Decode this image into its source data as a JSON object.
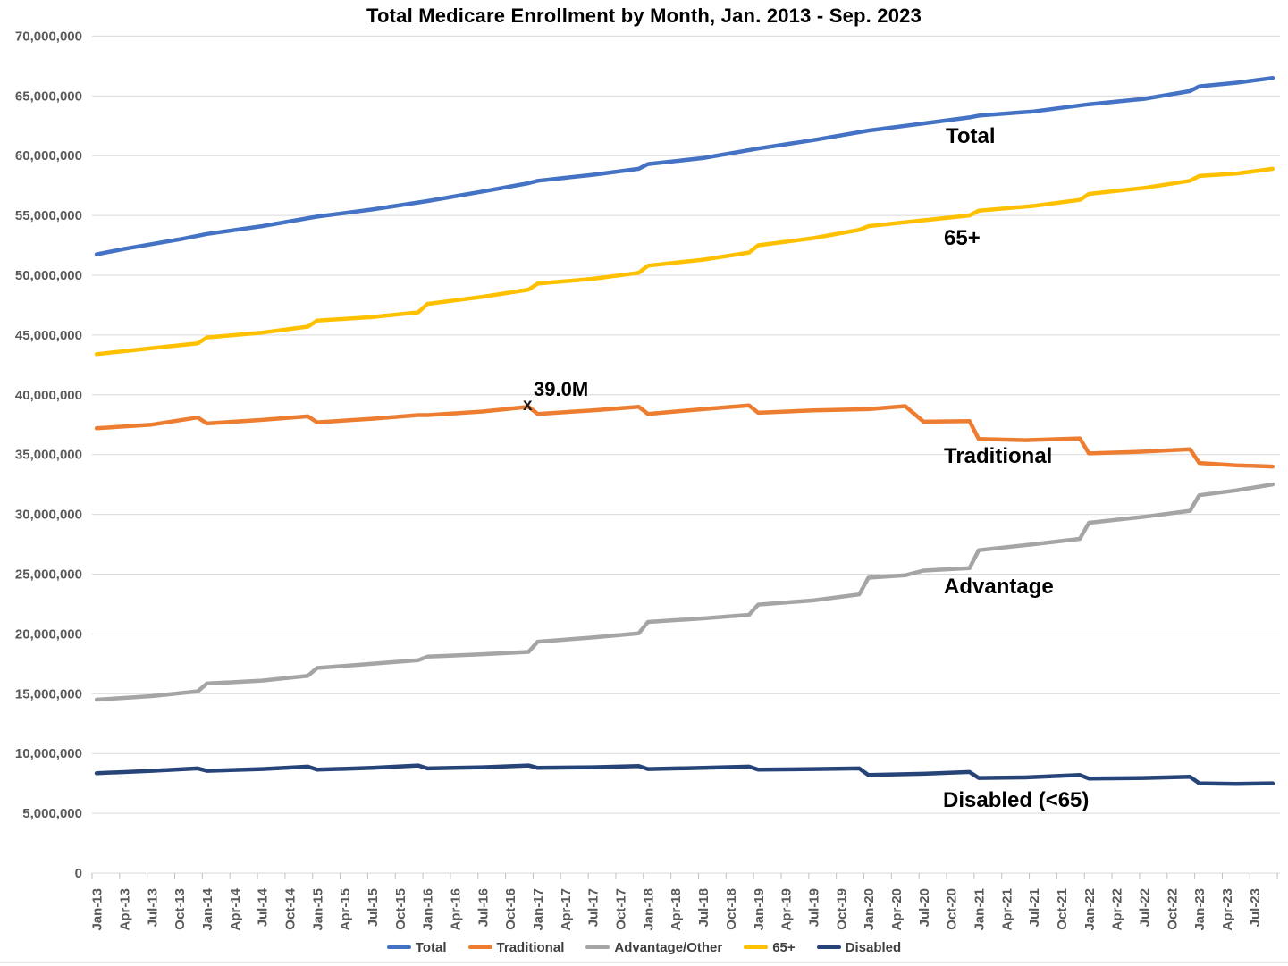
{
  "title": "Total Medicare Enrollment by Month, Jan. 2013 - Sep. 2023",
  "annotation": {
    "text": "39.0M",
    "marker": "x",
    "month": "Dec-16",
    "value": 39000000
  },
  "chart_data": {
    "type": "line",
    "title": "Total Medicare Enrollment by Month, Jan. 2013 - Sep. 2023",
    "xlabel": "",
    "ylabel": "",
    "x_range_months": [
      "Jan-13",
      "Sep-23"
    ],
    "ylim": [
      0,
      70000000
    ],
    "y_tick_step": 5000000,
    "grid": "horizontal",
    "legend_position": "bottom",
    "y_tick_labels": [
      "0",
      "5,000,000",
      "10,000,000",
      "15,000,000",
      "20,000,000",
      "25,000,000",
      "30,000,000",
      "35,000,000",
      "40,000,000",
      "45,000,000",
      "50,000,000",
      "55,000,000",
      "60,000,000",
      "65,000,000",
      "70,000,000"
    ],
    "x_tick_labels": [
      "Jan-13",
      "Apr-13",
      "Jul-13",
      "Oct-13",
      "Jan-14",
      "Apr-14",
      "Jul-14",
      "Oct-14",
      "Jan-15",
      "Apr-15",
      "Jul-15",
      "Oct-15",
      "Jan-16",
      "Apr-16",
      "Jul-16",
      "Oct-16",
      "Jan-17",
      "Apr-17",
      "Jul-17",
      "Oct-17",
      "Jan-18",
      "Apr-18",
      "Jul-18",
      "Oct-18",
      "Jan-19",
      "Apr-19",
      "Jul-19",
      "Oct-19",
      "Jan-20",
      "Apr-20",
      "Jul-20",
      "Oct-20",
      "Jan-21",
      "Apr-21",
      "Jul-21",
      "Oct-21",
      "Jan-22",
      "Apr-22",
      "Jul-22",
      "Oct-22",
      "Jan-23",
      "Apr-23",
      "Jul-23"
    ],
    "x_tick_interval_months": 3,
    "series": [
      {
        "name": "Total",
        "color": "#4472C4",
        "points": [
          [
            0,
            51750000
          ],
          [
            3,
            52200000
          ],
          [
            6,
            52600000
          ],
          [
            9,
            53000000
          ],
          [
            12,
            53450000
          ],
          [
            18,
            54100000
          ],
          [
            24,
            54900000
          ],
          [
            30,
            55500000
          ],
          [
            36,
            56200000
          ],
          [
            42,
            57000000
          ],
          [
            47,
            57700000
          ],
          [
            48,
            57900000
          ],
          [
            54,
            58400000
          ],
          [
            59,
            58900000
          ],
          [
            60,
            59300000
          ],
          [
            66,
            59800000
          ],
          [
            72,
            60600000
          ],
          [
            78,
            61300000
          ],
          [
            84,
            62100000
          ],
          [
            90,
            62700000
          ],
          [
            95,
            63200000
          ],
          [
            96,
            63350000
          ],
          [
            102,
            63700000
          ],
          [
            108,
            64300000
          ],
          [
            114,
            64750000
          ],
          [
            119,
            65400000
          ],
          [
            120,
            65800000
          ],
          [
            124,
            66100000
          ],
          [
            128,
            66500000
          ]
        ]
      },
      {
        "name": "Traditional",
        "color": "#ED7D31",
        "points": [
          [
            0,
            37200000
          ],
          [
            6,
            37500000
          ],
          [
            11,
            38100000
          ],
          [
            12,
            37600000
          ],
          [
            18,
            37900000
          ],
          [
            23,
            38200000
          ],
          [
            24,
            37700000
          ],
          [
            30,
            38000000
          ],
          [
            35,
            38300000
          ],
          [
            36,
            38300000
          ],
          [
            42,
            38600000
          ],
          [
            47,
            39000000
          ],
          [
            48,
            38400000
          ],
          [
            54,
            38700000
          ],
          [
            59,
            39000000
          ],
          [
            60,
            38400000
          ],
          [
            66,
            38800000
          ],
          [
            71,
            39100000
          ],
          [
            72,
            38500000
          ],
          [
            78,
            38700000
          ],
          [
            84,
            38800000
          ],
          [
            88,
            39050000
          ],
          [
            90,
            37750000
          ],
          [
            95,
            37800000
          ],
          [
            96,
            36300000
          ],
          [
            101,
            36200000
          ],
          [
            107,
            36350000
          ],
          [
            108,
            35100000
          ],
          [
            114,
            35250000
          ],
          [
            119,
            35450000
          ],
          [
            120,
            34300000
          ],
          [
            124,
            34100000
          ],
          [
            128,
            34000000
          ]
        ]
      },
      {
        "name": "Advantage/Other",
        "color": "#A5A5A5",
        "points": [
          [
            0,
            14500000
          ],
          [
            6,
            14800000
          ],
          [
            11,
            15200000
          ],
          [
            12,
            15850000
          ],
          [
            18,
            16100000
          ],
          [
            23,
            16500000
          ],
          [
            24,
            17150000
          ],
          [
            30,
            17500000
          ],
          [
            35,
            17800000
          ],
          [
            36,
            18100000
          ],
          [
            42,
            18300000
          ],
          [
            47,
            18500000
          ],
          [
            48,
            19350000
          ],
          [
            54,
            19700000
          ],
          [
            59,
            20050000
          ],
          [
            60,
            21000000
          ],
          [
            66,
            21300000
          ],
          [
            71,
            21600000
          ],
          [
            72,
            22450000
          ],
          [
            78,
            22800000
          ],
          [
            83,
            23300000
          ],
          [
            84,
            24700000
          ],
          [
            88,
            24900000
          ],
          [
            90,
            25300000
          ],
          [
            95,
            25500000
          ],
          [
            96,
            27000000
          ],
          [
            102,
            27500000
          ],
          [
            107,
            27950000
          ],
          [
            108,
            29300000
          ],
          [
            114,
            29800000
          ],
          [
            119,
            30300000
          ],
          [
            120,
            31600000
          ],
          [
            124,
            32000000
          ],
          [
            128,
            32500000
          ]
        ]
      },
      {
        "name": "65+",
        "color": "#FFC000",
        "points": [
          [
            0,
            43400000
          ],
          [
            6,
            43900000
          ],
          [
            11,
            44300000
          ],
          [
            12,
            44800000
          ],
          [
            18,
            45200000
          ],
          [
            23,
            45700000
          ],
          [
            24,
            46200000
          ],
          [
            30,
            46500000
          ],
          [
            35,
            46900000
          ],
          [
            36,
            47600000
          ],
          [
            42,
            48200000
          ],
          [
            47,
            48800000
          ],
          [
            48,
            49300000
          ],
          [
            54,
            49700000
          ],
          [
            59,
            50200000
          ],
          [
            60,
            50800000
          ],
          [
            66,
            51300000
          ],
          [
            71,
            51900000
          ],
          [
            72,
            52500000
          ],
          [
            78,
            53100000
          ],
          [
            83,
            53800000
          ],
          [
            84,
            54100000
          ],
          [
            90,
            54600000
          ],
          [
            95,
            55000000
          ],
          [
            96,
            55400000
          ],
          [
            102,
            55800000
          ],
          [
            107,
            56300000
          ],
          [
            108,
            56800000
          ],
          [
            114,
            57300000
          ],
          [
            119,
            57900000
          ],
          [
            120,
            58300000
          ],
          [
            124,
            58500000
          ],
          [
            128,
            58900000
          ]
        ]
      },
      {
        "name": "Disabled",
        "color": "#264478",
        "points": [
          [
            0,
            8350000
          ],
          [
            6,
            8550000
          ],
          [
            11,
            8750000
          ],
          [
            12,
            8550000
          ],
          [
            18,
            8700000
          ],
          [
            23,
            8900000
          ],
          [
            24,
            8650000
          ],
          [
            30,
            8800000
          ],
          [
            35,
            9000000
          ],
          [
            36,
            8750000
          ],
          [
            42,
            8850000
          ],
          [
            47,
            9000000
          ],
          [
            48,
            8800000
          ],
          [
            54,
            8850000
          ],
          [
            59,
            8950000
          ],
          [
            60,
            8700000
          ],
          [
            66,
            8800000
          ],
          [
            71,
            8900000
          ],
          [
            72,
            8650000
          ],
          [
            78,
            8700000
          ],
          [
            83,
            8750000
          ],
          [
            84,
            8200000
          ],
          [
            90,
            8300000
          ],
          [
            95,
            8450000
          ],
          [
            96,
            7950000
          ],
          [
            101,
            8000000
          ],
          [
            107,
            8200000
          ],
          [
            108,
            7900000
          ],
          [
            114,
            7950000
          ],
          [
            119,
            8050000
          ],
          [
            120,
            7500000
          ],
          [
            124,
            7450000
          ],
          [
            128,
            7500000
          ]
        ]
      }
    ],
    "inline_labels": [
      {
        "text": "Total"
      },
      {
        "text": "65+"
      },
      {
        "text": "Traditional"
      },
      {
        "text": "Advantage"
      },
      {
        "text": "Disabled (<65)"
      }
    ],
    "annotation": {
      "text": "39.0M",
      "marker": "x",
      "month_index": 47,
      "value": 39000000
    }
  },
  "legend": [
    {
      "label": "Total",
      "color": "#4472C4"
    },
    {
      "label": "Traditional",
      "color": "#ED7D31"
    },
    {
      "label": "Advantage/Other",
      "color": "#A5A5A5"
    },
    {
      "label": "65+",
      "color": "#FFC000"
    },
    {
      "label": "Disabled",
      "color": "#264478"
    }
  ],
  "colors": {
    "gridline": "#D9D9D9",
    "tick": "#BFBFBF",
    "axis_label": "#595959",
    "legend_text": "#404040",
    "title_text": "#000000"
  }
}
